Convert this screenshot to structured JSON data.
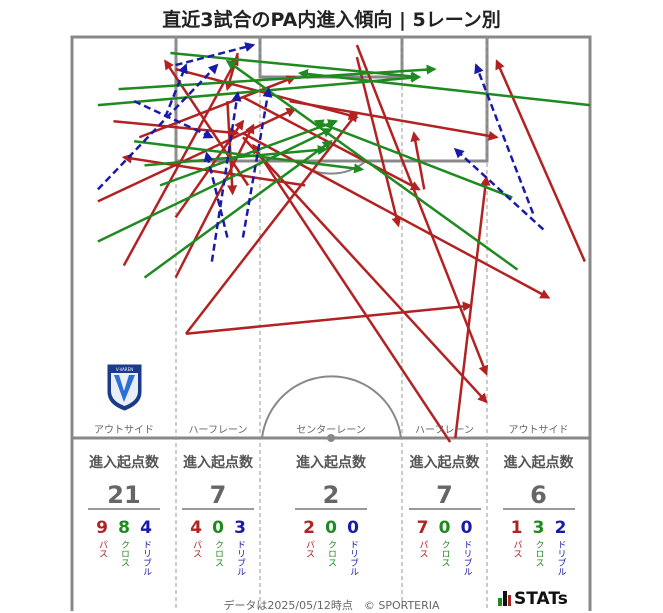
{
  "title": "直近3試合のPA内進入傾向 | 5レーン別",
  "colors": {
    "pass": "#b22222",
    "cross": "#1f8a1f",
    "dribble": "#1a1aa8",
    "line": "#888888"
  },
  "lanes": [
    {
      "label": "アウトサイド",
      "stat_title": "進入起点数",
      "total": "21",
      "pass": "9",
      "cross": "8",
      "dribble": "4"
    },
    {
      "label": "ハーフレーン",
      "stat_title": "進入起点数",
      "total": "7",
      "pass": "4",
      "cross": "0",
      "dribble": "3"
    },
    {
      "label": "センターレーン",
      "stat_title": "進入起点数",
      "total": "2",
      "pass": "2",
      "cross": "0",
      "dribble": "0"
    },
    {
      "label": "ハーフレーン",
      "stat_title": "進入起点数",
      "total": "7",
      "pass": "7",
      "cross": "0",
      "dribble": "0"
    },
    {
      "label": "アウトサイド",
      "stat_title": "進入起点数",
      "total": "6",
      "pass": "1",
      "cross": "3",
      "dribble": "2"
    }
  ],
  "labels": {
    "pass": "パス",
    "cross": "クロス",
    "dribble": "ドリブル"
  },
  "footer": "データは2025/05/12時点　© SPORTERIA",
  "brand": "STATs",
  "crest_text": "V-VAREN",
  "chart_data": {
    "type": "arrow-map",
    "lanes": [
      "アウトサイド",
      "ハーフレーン",
      "センターレーン",
      "ハーフレーン",
      "アウトサイド"
    ],
    "entries": [
      {
        "type": "pass",
        "x1": 0.55,
        "y1": 0.02,
        "x2": 0.8,
        "y2": 0.84
      },
      {
        "type": "pass",
        "x1": 0.1,
        "y1": 0.57,
        "x2": 0.32,
        "y2": 0.05
      },
      {
        "type": "pass",
        "x1": 0.22,
        "y1": 0.74,
        "x2": 0.55,
        "y2": 0.19
      },
      {
        "type": "pass",
        "x1": 0.22,
        "y1": 0.74,
        "x2": 0.77,
        "y2": 0.67
      },
      {
        "type": "pass",
        "x1": 0.33,
        "y1": 0.25,
        "x2": 0.8,
        "y2": 0.91
      },
      {
        "type": "pass",
        "x1": 0.2,
        "y1": 0.08,
        "x2": 0.55,
        "y2": 0.2
      },
      {
        "type": "pass",
        "x1": 0.13,
        "y1": 0.25,
        "x2": 0.43,
        "y2": 0.1
      },
      {
        "type": "pass",
        "x1": 0.33,
        "y1": 0.24,
        "x2": 0.92,
        "y2": 0.65
      },
      {
        "type": "pass",
        "x1": 0.68,
        "y1": 0.38,
        "x2": 0.66,
        "y2": 0.24
      },
      {
        "type": "pass",
        "x1": 0.74,
        "y1": 1.0,
        "x2": 0.8,
        "y2": 0.35
      },
      {
        "type": "pass",
        "x1": 0.2,
        "y1": 0.45,
        "x2": 0.33,
        "y2": 0.21
      },
      {
        "type": "pass",
        "x1": 0.32,
        "y1": 0.04,
        "x2": 0.3,
        "y2": 0.13
      },
      {
        "type": "pass",
        "x1": 0.34,
        "y1": 0.37,
        "x2": 0.18,
        "y2": 0.06
      },
      {
        "type": "pass",
        "x1": 0.45,
        "y1": 0.37,
        "x2": 0.1,
        "y2": 0.3
      },
      {
        "type": "pass",
        "x1": 0.99,
        "y1": 0.56,
        "x2": 0.82,
        "y2": 0.06
      },
      {
        "type": "pass",
        "x1": 0.73,
        "y1": 1.01,
        "x2": 0.35,
        "y2": 0.27
      },
      {
        "type": "pass",
        "x1": 0.05,
        "y1": 0.41,
        "x2": 0.43,
        "y2": 0.18
      },
      {
        "type": "pass",
        "x1": 0.08,
        "y1": 0.21,
        "x2": 0.32,
        "y2": 0.24
      },
      {
        "type": "pass",
        "x1": 0.3,
        "y1": 0.16,
        "x2": 0.31,
        "y2": 0.39
      },
      {
        "type": "pass",
        "x1": 0.33,
        "y1": 0.15,
        "x2": 0.67,
        "y2": 0.38
      },
      {
        "type": "pass",
        "x1": 0.2,
        "y1": 0.6,
        "x2": 0.35,
        "y2": 0.22
      },
      {
        "type": "pass",
        "x1": 0.55,
        "y1": 0.05,
        "x2": 0.63,
        "y2": 0.47
      },
      {
        "type": "pass",
        "x1": 0.42,
        "y1": 0.16,
        "x2": 0.82,
        "y2": 0.25
      },
      {
        "type": "cross",
        "x1": 0.19,
        "y1": 0.04,
        "x2": 0.67,
        "y2": 0.1
      },
      {
        "type": "cross",
        "x1": 0.09,
        "y1": 0.13,
        "x2": 0.7,
        "y2": 0.08
      },
      {
        "type": "cross",
        "x1": 1.0,
        "y1": 0.17,
        "x2": 0.44,
        "y2": 0.09
      },
      {
        "type": "cross",
        "x1": 0.05,
        "y1": 0.17,
        "x2": 0.67,
        "y2": 0.1
      },
      {
        "type": "cross",
        "x1": 0.05,
        "y1": 0.51,
        "x2": 0.5,
        "y2": 0.23
      },
      {
        "type": "cross",
        "x1": 0.17,
        "y1": 0.37,
        "x2": 0.51,
        "y2": 0.21
      },
      {
        "type": "cross",
        "x1": 0.14,
        "y1": 0.6,
        "x2": 0.5,
        "y2": 0.26
      },
      {
        "type": "cross",
        "x1": 0.12,
        "y1": 0.26,
        "x2": 0.56,
        "y2": 0.33
      },
      {
        "type": "cross",
        "x1": 0.14,
        "y1": 0.32,
        "x2": 0.49,
        "y2": 0.28
      },
      {
        "type": "cross",
        "x1": 0.86,
        "y1": 0.58,
        "x2": 0.3,
        "y2": 0.06
      },
      {
        "type": "cross",
        "x1": 0.85,
        "y1": 0.4,
        "x2": 0.47,
        "y2": 0.21
      },
      {
        "type": "dribble",
        "x1": 0.05,
        "y1": 0.38,
        "x2": 0.28,
        "y2": 0.07
      },
      {
        "type": "dribble",
        "x1": 0.12,
        "y1": 0.16,
        "x2": 0.27,
        "y2": 0.25
      },
      {
        "type": "dribble",
        "x1": 0.18,
        "y1": 0.2,
        "x2": 0.22,
        "y2": 0.07
      },
      {
        "type": "dribble",
        "x1": 0.2,
        "y1": 0.07,
        "x2": 0.35,
        "y2": 0.02
      },
      {
        "type": "dribble",
        "x1": 0.3,
        "y1": 0.5,
        "x2": 0.26,
        "y2": 0.29
      },
      {
        "type": "dribble",
        "x1": 0.27,
        "y1": 0.56,
        "x2": 0.32,
        "y2": 0.14
      },
      {
        "type": "dribble",
        "x1": 0.33,
        "y1": 0.5,
        "x2": 0.38,
        "y2": 0.13
      },
      {
        "type": "dribble",
        "x1": 0.89,
        "y1": 0.44,
        "x2": 0.78,
        "y2": 0.07
      },
      {
        "type": "dribble",
        "x1": 0.91,
        "y1": 0.48,
        "x2": 0.74,
        "y2": 0.28
      }
    ]
  }
}
